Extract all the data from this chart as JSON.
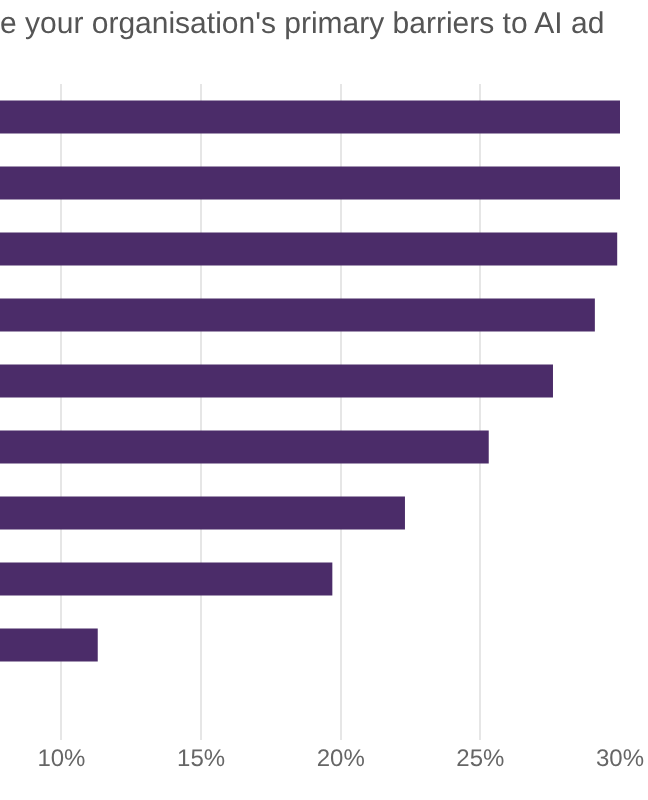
{
  "chart_data": {
    "type": "bar",
    "orientation": "horizontal",
    "title": "e your organisation's primary barriers to AI ad",
    "categories": [
      null,
      null,
      null,
      null,
      null,
      null,
      null,
      null,
      null
    ],
    "values": [
      30,
      30,
      29.9,
      29.1,
      27.6,
      25.3,
      22.3,
      19.7,
      11.3
    ],
    "color": "#4b2c69",
    "xlim": [
      7.8,
      30
    ],
    "xticks": [
      {
        "value": 10,
        "label": "10%"
      },
      {
        "value": 15,
        "label": "15%"
      },
      {
        "value": 20,
        "label": "20%"
      },
      {
        "value": 25,
        "label": "25%"
      },
      {
        "value": 30,
        "label": "30%"
      }
    ],
    "grid": "x",
    "tick_labels": "x"
  }
}
